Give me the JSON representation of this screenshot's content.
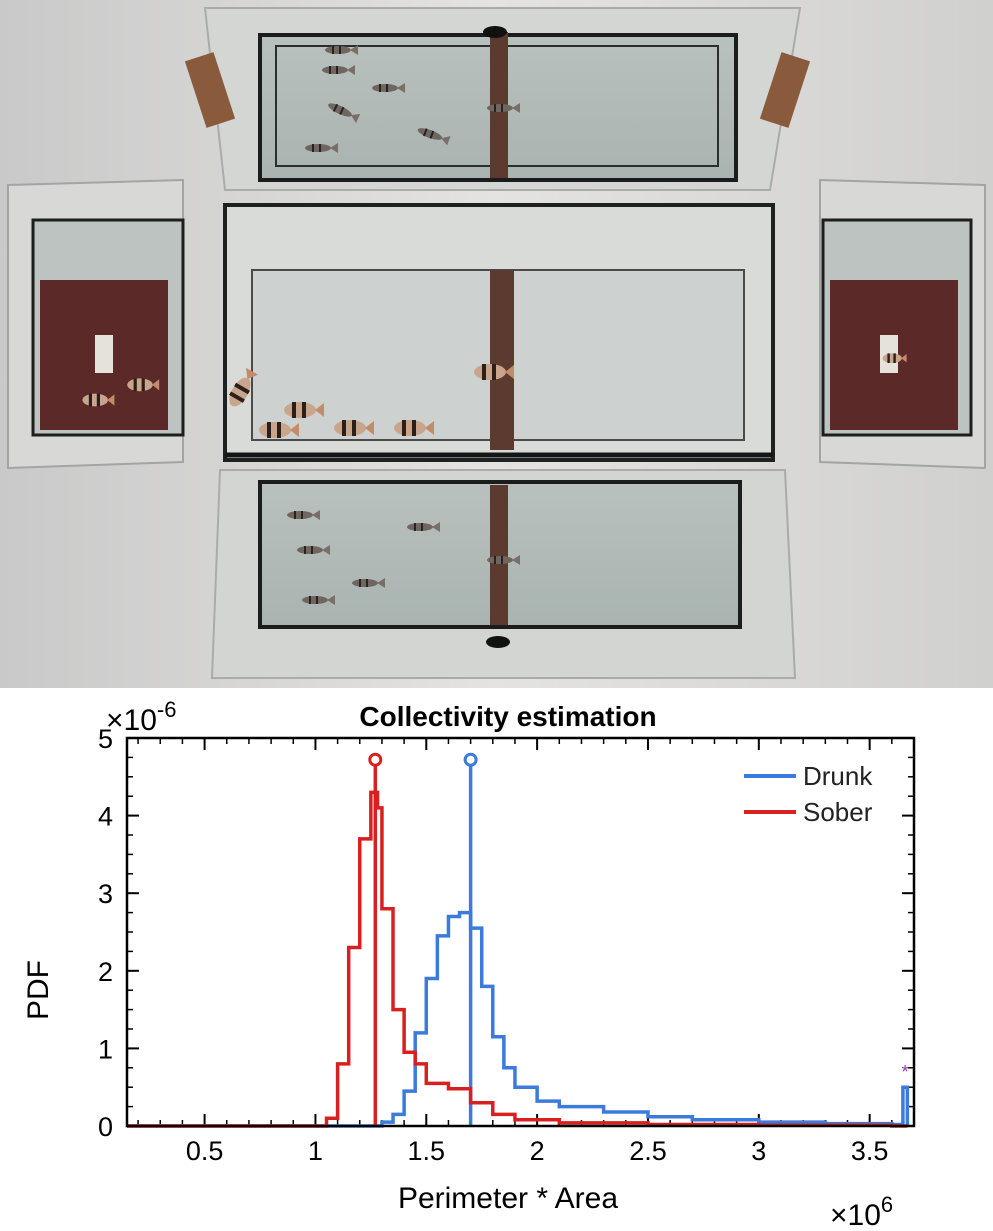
{
  "colors": {
    "drunk": "#3a7bdc",
    "sober": "#d92020",
    "marker": "#9b2fae"
  },
  "photo": {
    "description_icon": "fish-tank-photo"
  },
  "chart_data": {
    "type": "line",
    "title": "Collectivity estimation",
    "xlabel": "Perimeter * Area",
    "ylabel": "PDF",
    "x_scale_label": "×10",
    "x_scale_exp": "6",
    "y_scale_label": "×10",
    "y_scale_exp": "-6",
    "xlim": [
      0.15,
      3.7
    ],
    "ylim": [
      0,
      5
    ],
    "xticks": [
      0.5,
      1,
      1.5,
      2,
      2.5,
      3,
      3.5
    ],
    "xtick_labels": [
      "0.5",
      "1",
      "1.5",
      "2",
      "2.5",
      "3",
      "3.5"
    ],
    "yticks": [
      0,
      1,
      2,
      3,
      4,
      5
    ],
    "ytick_labels": [
      "0",
      "1",
      "2",
      "3",
      "4",
      "5"
    ],
    "legend_position": "top-right",
    "annotation": "*",
    "series": [
      {
        "name": "Drunk",
        "color": "#3a7bdc",
        "marker_x": 1.7,
        "marker_y": 4.72,
        "x": [
          0.15,
          1.0,
          1.2,
          1.3,
          1.35,
          1.4,
          1.45,
          1.5,
          1.55,
          1.6,
          1.65,
          1.7,
          1.75,
          1.8,
          1.85,
          1.9,
          2.0,
          2.1,
          2.2,
          2.3,
          2.5,
          2.7,
          3.0,
          3.3,
          3.6,
          3.65,
          3.66,
          3.67
        ],
        "y": [
          0,
          0,
          0.0,
          0.05,
          0.15,
          0.45,
          1.2,
          1.9,
          2.45,
          2.7,
          2.75,
          2.55,
          1.8,
          1.15,
          0.75,
          0.5,
          0.32,
          0.25,
          0.25,
          0.18,
          0.12,
          0.08,
          0.05,
          0.03,
          0.02,
          0.5,
          0.5,
          0.0
        ]
      },
      {
        "name": "Sober",
        "color": "#d92020",
        "marker_x": 1.27,
        "marker_y": 4.72,
        "x": [
          0.15,
          0.9,
          1.05,
          1.1,
          1.15,
          1.2,
          1.25,
          1.28,
          1.3,
          1.35,
          1.4,
          1.45,
          1.5,
          1.6,
          1.7,
          1.8,
          1.9,
          2.1,
          2.5,
          3.0,
          3.6,
          3.67
        ],
        "y": [
          0,
          0,
          0.1,
          0.8,
          2.3,
          3.7,
          4.3,
          4.1,
          2.8,
          1.5,
          0.95,
          0.8,
          0.55,
          0.48,
          0.3,
          0.15,
          0.08,
          0.04,
          0.02,
          0.01,
          0.0,
          0.0
        ]
      }
    ]
  }
}
